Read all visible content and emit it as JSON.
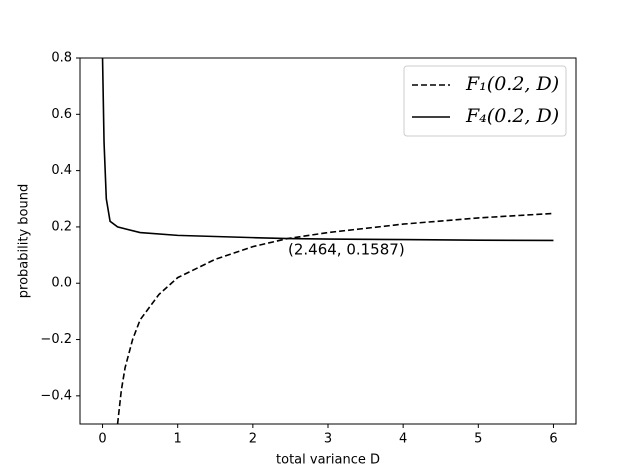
{
  "chart_data": {
    "type": "line",
    "xlabel": "total variance D",
    "ylabel": "probability bound",
    "xlim": [
      -0.3,
      6.3
    ],
    "ylim": [
      -0.5,
      0.8
    ],
    "xticks": [
      0,
      1,
      2,
      3,
      4,
      5,
      6
    ],
    "yticks": [
      {
        "value": -0.4,
        "label": "−0.4"
      },
      {
        "value": -0.2,
        "label": "−0.2"
      },
      {
        "value": 0,
        "label": "0.0"
      },
      0.2,
      0.4,
      0.6,
      0.8
    ],
    "legend": "upper right",
    "annotation": "(2.464, 0.1587)",
    "series": [
      {
        "name": "F₁(0.2, D)",
        "color": "#000000",
        "dash": true,
        "x": [
          0.2,
          0.25,
          0.3,
          0.4,
          0.5,
          0.75,
          1,
          1.5,
          2,
          2.464,
          3,
          4,
          5,
          6
        ],
        "values": [
          -0.5,
          -0.38,
          -0.3,
          -0.2,
          -0.13,
          -0.04,
          0.02,
          0.085,
          0.13,
          0.1587,
          0.18,
          0.21,
          0.232,
          0.248
        ]
      },
      {
        "name": "F₄(0.2, D)",
        "color": "#000000",
        "dash": false,
        "x": [
          0,
          0.02,
          0.05,
          0.1,
          0.2,
          0.5,
          1,
          2,
          2.464,
          3,
          4,
          5,
          6
        ],
        "values": [
          0.8,
          0.5,
          0.3,
          0.22,
          0.2,
          0.18,
          0.17,
          0.162,
          0.1587,
          0.157,
          0.155,
          0.153,
          0.152
        ]
      }
    ]
  }
}
